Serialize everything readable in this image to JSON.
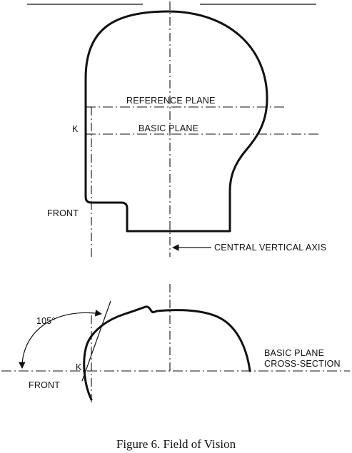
{
  "labels": {
    "reference_plane": "REFERENCE PLANE",
    "basic_plane": "BASIC PLANE",
    "k_top": "K",
    "front_top": "FRONT",
    "central_vertical_axis": "CENTRAL VERTICAL AXIS",
    "angle": "105°",
    "k_bottom": "K",
    "front_bottom": "FRONT",
    "cross_section_line1": "BASIC PLANE",
    "cross_section_line2": "CROSS-SECTION"
  },
  "caption": "Figure 6.  Field of Vision"
}
